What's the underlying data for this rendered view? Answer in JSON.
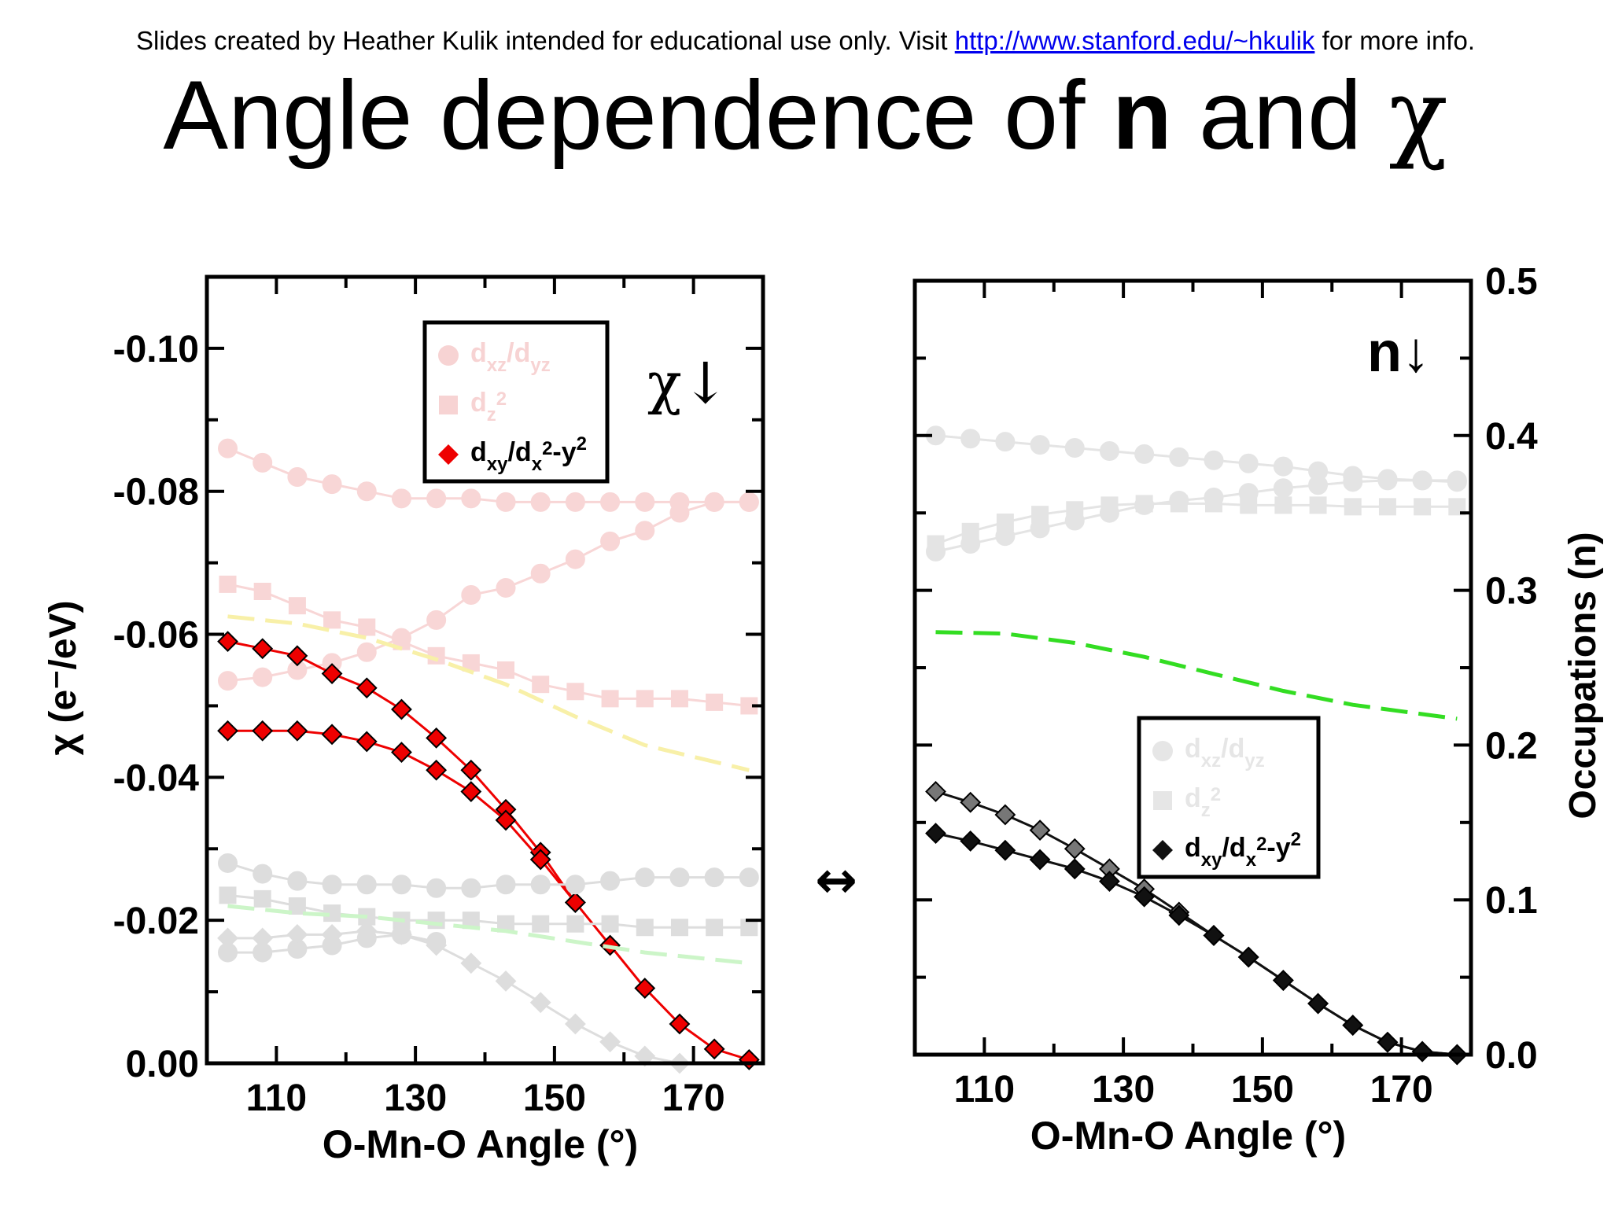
{
  "slide": {
    "credit_prefix": "Slides created by Heather Kulik intended for educational use only. Visit ",
    "credit_link": "http://www.stanford.edu/~hkulik",
    "credit_suffix": " for more info.",
    "title_part1": "Angle dependence of ",
    "title_bold": "n",
    "title_part2": " and ",
    "title_greek": "χ",
    "double_arrow": "↔"
  },
  "chart_data": [
    {
      "type": "line",
      "panel_label": "χ↓",
      "xlabel": "O-Mn-O Angle (°)",
      "ylabel": "χ (e⁻/eV)",
      "xlim": [
        100,
        180
      ],
      "ylim": [
        0.0,
        -0.11
      ],
      "x_ticks": [
        110,
        130,
        150,
        170
      ],
      "y_ticks": [
        {
          "value": 0.0,
          "label": "0.00"
        },
        {
          "value": -0.02,
          "label": "-0.02"
        },
        {
          "value": -0.04,
          "label": "-0.04"
        },
        {
          "value": -0.06,
          "label": "-0.06"
        },
        {
          "value": -0.08,
          "label": "-0.08"
        },
        {
          "value": -0.1,
          "label": "-0.10"
        }
      ],
      "legend": {
        "placement": "top-center",
        "entries": [
          {
            "main": "d",
            "sub": "xz",
            "mid": "/d",
            "sub2": "yz",
            "marker": "circle",
            "color": "#f7d3d3"
          },
          {
            "main": "d",
            "sub": "z",
            "sup": "2",
            "marker": "square",
            "color": "#f7d3d3"
          },
          {
            "main": "d",
            "sub": "xy",
            "mid": "/d",
            "sub2": "x",
            "sup2": "2",
            "tail": "-y",
            "sup3": "2",
            "marker": "diamond",
            "color": "#ee0000"
          }
        ]
      },
      "series": [
        {
          "marker": "circle",
          "color": "#f8d6d6",
          "x": [
            103,
            108,
            113,
            118,
            123,
            128,
            133,
            138,
            143,
            148,
            153,
            158,
            163,
            168,
            173,
            178
          ],
          "y": [
            -0.086,
            -0.084,
            -0.082,
            -0.081,
            -0.08,
            -0.079,
            -0.079,
            -0.079,
            -0.0785,
            -0.0785,
            -0.0785,
            -0.0785,
            -0.0785,
            -0.0785,
            -0.0785,
            -0.0785
          ]
        },
        {
          "marker": "circle",
          "color": "#f8d6d6",
          "x": [
            103,
            108,
            113,
            118,
            123,
            128,
            133,
            138,
            143,
            148,
            153,
            158,
            163,
            168,
            173,
            178
          ],
          "y": [
            -0.0535,
            -0.054,
            -0.055,
            -0.056,
            -0.0575,
            -0.0595,
            -0.062,
            -0.0655,
            -0.0665,
            -0.0685,
            -0.0705,
            -0.073,
            -0.0745,
            -0.077,
            -0.0785,
            -0.0785
          ]
        },
        {
          "marker": "square",
          "color": "#f8d6d6",
          "x": [
            103,
            108,
            113,
            118,
            123,
            128,
            133,
            138,
            143,
            148,
            153,
            158,
            163,
            168,
            173,
            178
          ],
          "y": [
            -0.067,
            -0.066,
            -0.064,
            -0.062,
            -0.061,
            -0.059,
            -0.057,
            -0.056,
            -0.055,
            -0.053,
            -0.052,
            -0.051,
            -0.051,
            -0.051,
            -0.0505,
            -0.05
          ]
        },
        {
          "marker": "dash",
          "color": "#f8f0a8",
          "x": [
            103,
            113,
            123,
            133,
            143,
            153,
            163,
            178
          ],
          "y": [
            -0.0625,
            -0.0615,
            -0.0595,
            -0.0565,
            -0.053,
            -0.0485,
            -0.0445,
            -0.041
          ]
        },
        {
          "marker": "diamond",
          "color": "#ee0000",
          "x": [
            103,
            108,
            113,
            118,
            123,
            128,
            133,
            138,
            143,
            148,
            153,
            158,
            163,
            168,
            173,
            178
          ],
          "y": [
            -0.059,
            -0.058,
            -0.057,
            -0.0545,
            -0.0525,
            -0.0495,
            -0.0455,
            -0.041,
            -0.0355,
            -0.0295,
            -0.0225,
            -0.0165,
            -0.0105,
            -0.0055,
            -0.002,
            -0.0005
          ]
        },
        {
          "marker": "diamond",
          "color": "#ee0000",
          "x": [
            103,
            108,
            113,
            118,
            123,
            128,
            133,
            138,
            143,
            148,
            153
          ],
          "y": [
            -0.0465,
            -0.0465,
            -0.0465,
            -0.046,
            -0.045,
            -0.0435,
            -0.041,
            -0.038,
            -0.034,
            -0.0285,
            -0.0225
          ]
        },
        {
          "marker": "circle",
          "color": "#dddddd",
          "x": [
            103,
            108,
            113,
            118,
            123,
            128,
            133,
            138,
            143,
            148,
            153,
            158,
            163,
            168,
            173,
            178
          ],
          "y": [
            -0.028,
            -0.0265,
            -0.0255,
            -0.025,
            -0.025,
            -0.025,
            -0.0245,
            -0.0245,
            -0.025,
            -0.025,
            -0.025,
            -0.0255,
            -0.026,
            -0.026,
            -0.026,
            -0.026
          ]
        },
        {
          "marker": "square",
          "color": "#dddddd",
          "x": [
            103,
            108,
            113,
            118,
            123,
            128,
            133,
            138,
            143,
            148,
            153,
            158,
            163,
            168,
            173,
            178
          ],
          "y": [
            -0.0235,
            -0.023,
            -0.022,
            -0.021,
            -0.0205,
            -0.02,
            -0.02,
            -0.02,
            -0.0195,
            -0.0195,
            -0.0195,
            -0.0195,
            -0.019,
            -0.019,
            -0.019,
            -0.019
          ]
        },
        {
          "marker": "dash",
          "color": "#ccf5c8",
          "x": [
            103,
            113,
            123,
            133,
            143,
            153,
            163,
            178
          ],
          "y": [
            -0.022,
            -0.021,
            -0.0205,
            -0.0195,
            -0.0185,
            -0.017,
            -0.0155,
            -0.014
          ]
        },
        {
          "marker": "circle",
          "color": "#dddddd",
          "x": [
            103,
            108,
            113,
            118,
            123,
            128,
            133
          ],
          "y": [
            -0.0155,
            -0.0155,
            -0.016,
            -0.0165,
            -0.0175,
            -0.018,
            -0.017
          ]
        },
        {
          "marker": "diamond",
          "color": "#dddddd",
          "x": [
            103,
            108,
            113,
            118,
            123,
            128,
            133,
            138,
            143,
            148,
            153,
            158,
            163,
            168
          ],
          "y": [
            -0.0175,
            -0.0175,
            -0.018,
            -0.018,
            -0.0185,
            -0.018,
            -0.0165,
            -0.014,
            -0.0115,
            -0.0085,
            -0.0055,
            -0.003,
            -0.001,
            0.0
          ]
        }
      ]
    },
    {
      "type": "line",
      "panel_label": "n↓",
      "xlabel": "O-Mn-O Angle (°)",
      "ylabel": "Occupations (n)",
      "xlim": [
        100,
        180
      ],
      "ylim": [
        0.0,
        0.5
      ],
      "x_ticks": [
        110,
        130,
        150,
        170
      ],
      "y_ticks": [
        {
          "value": 0.0,
          "label": "0.0"
        },
        {
          "value": 0.1,
          "label": "0.1"
        },
        {
          "value": 0.2,
          "label": "0.2"
        },
        {
          "value": 0.3,
          "label": "0.3"
        },
        {
          "value": 0.4,
          "label": "0.4"
        },
        {
          "value": 0.5,
          "label": "0.5"
        }
      ],
      "legend": {
        "placement": "center",
        "entries": [
          {
            "main": "d",
            "sub": "xz",
            "mid": "/d",
            "sub2": "yz",
            "marker": "circle",
            "color": "#e6e6e6"
          },
          {
            "main": "d",
            "sub": "z",
            "sup": "2",
            "marker": "square",
            "color": "#e6e6e6"
          },
          {
            "main": "d",
            "sub": "xy",
            "mid": "/d",
            "sub2": "x",
            "sup2": "2",
            "tail": "-y",
            "sup3": "2",
            "marker": "diamond",
            "color": "#111111"
          }
        ]
      },
      "series": [
        {
          "marker": "circle",
          "color": "#e4e4e4",
          "x": [
            103,
            108,
            113,
            118,
            123,
            128,
            133,
            138,
            143,
            148,
            153,
            158,
            163,
            168,
            173,
            178
          ],
          "y": [
            0.4,
            0.398,
            0.396,
            0.394,
            0.392,
            0.39,
            0.388,
            0.386,
            0.384,
            0.382,
            0.38,
            0.377,
            0.374,
            0.372,
            0.371,
            0.37
          ]
        },
        {
          "marker": "circle",
          "color": "#e4e4e4",
          "x": [
            103,
            108,
            113,
            118,
            123,
            128,
            133,
            138,
            143,
            148,
            153,
            158,
            163,
            168,
            173,
            178
          ],
          "y": [
            0.325,
            0.33,
            0.335,
            0.34,
            0.345,
            0.35,
            0.355,
            0.358,
            0.36,
            0.363,
            0.366,
            0.368,
            0.37,
            0.371,
            0.371,
            0.371
          ]
        },
        {
          "marker": "square",
          "color": "#e4e4e4",
          "x": [
            103,
            108,
            113,
            118,
            123,
            128,
            133,
            138,
            143,
            148,
            153,
            158,
            163,
            168,
            173,
            178
          ],
          "y": [
            0.33,
            0.338,
            0.344,
            0.349,
            0.352,
            0.355,
            0.356,
            0.356,
            0.356,
            0.355,
            0.355,
            0.355,
            0.354,
            0.354,
            0.354,
            0.354
          ]
        },
        {
          "marker": "dash",
          "color": "#33dd22",
          "x": [
            103,
            113,
            123,
            133,
            143,
            153,
            163,
            178
          ],
          "y": [
            0.273,
            0.272,
            0.266,
            0.257,
            0.246,
            0.235,
            0.226,
            0.217
          ]
        },
        {
          "marker": "diamond",
          "color": "#111111",
          "x": [
            103,
            108,
            113,
            118,
            123,
            128,
            133,
            138,
            143,
            148,
            153,
            158,
            163,
            168,
            173,
            178
          ],
          "y": [
            0.17,
            0.163,
            0.155,
            0.145,
            0.133,
            0.12,
            0.107,
            0.092,
            0.077,
            0.063,
            0.048,
            0.033,
            0.019,
            0.008,
            0.002,
            0.0
          ]
        },
        {
          "marker": "diamond",
          "color": "#111111",
          "x": [
            103,
            108,
            113,
            118,
            123,
            128,
            133,
            138,
            143,
            148,
            153,
            158,
            163,
            168,
            173,
            178
          ],
          "y": [
            0.143,
            0.138,
            0.132,
            0.126,
            0.12,
            0.112,
            0.102,
            0.09,
            0.077,
            0.063,
            0.048,
            0.033,
            0.019,
            0.008,
            0.002,
            0.0
          ]
        }
      ]
    }
  ]
}
